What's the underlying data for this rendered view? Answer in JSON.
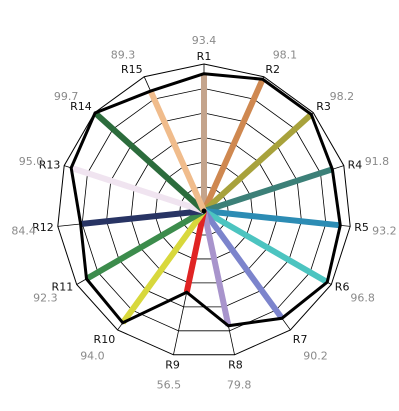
{
  "chart_data": {
    "type": "radar",
    "ylim": [
      0,
      100
    ],
    "grid": true,
    "rings": 6,
    "series": [
      {
        "name": "",
        "color": "#000000",
        "values": [
          93.4,
          98.1,
          98.2,
          91.8,
          93.2,
          96.8,
          90.2,
          79.8,
          56.5,
          94.0,
          92.3,
          84.4,
          95.0,
          99.7,
          89.3
        ]
      }
    ],
    "categories": [
      {
        "label": "R1",
        "value": 93.4,
        "value_text": "93.4",
        "color": "#c4a48c"
      },
      {
        "label": "R2",
        "value": 98.1,
        "value_text": "98.1",
        "color": "#cf8850"
      },
      {
        "label": "R3",
        "value": 98.2,
        "value_text": "98.2",
        "color": "#a8a23c"
      },
      {
        "label": "R4",
        "value": 91.8,
        "value_text": "91.8",
        "color": "#3c8078"
      },
      {
        "label": "R5",
        "value": 93.2,
        "value_text": "93.2",
        "color": "#2c8cb4"
      },
      {
        "label": "R6",
        "value": 96.8,
        "value_text": "96.8",
        "color": "#4cc4c0"
      },
      {
        "label": "R7",
        "value": 90.2,
        "value_text": "90.2",
        "color": "#7c84cc"
      },
      {
        "label": "R8",
        "value": 79.8,
        "value_text": "79.8",
        "color": "#a894cc"
      },
      {
        "label": "R9",
        "value": 56.5,
        "value_text": "56.5",
        "color": "#e02424"
      },
      {
        "label": "R10",
        "value": 94.0,
        "value_text": "94.0",
        "color": "#d8d83c"
      },
      {
        "label": "R11",
        "value": 92.3,
        "value_text": "92.3",
        "color": "#3c8c4c"
      },
      {
        "label": "R12",
        "value": 84.4,
        "value_text": "84.4",
        "color": "#283464"
      },
      {
        "label": "R13",
        "value": 95.0,
        "value_text": "95.0",
        "color": "#f0e4f0"
      },
      {
        "label": "R14",
        "value": 99.7,
        "value_text": "99.7",
        "color": "#2c6c3c"
      },
      {
        "label": "R15",
        "value": 89.3,
        "value_text": "89.3",
        "color": "#f0bc8c"
      }
    ]
  }
}
